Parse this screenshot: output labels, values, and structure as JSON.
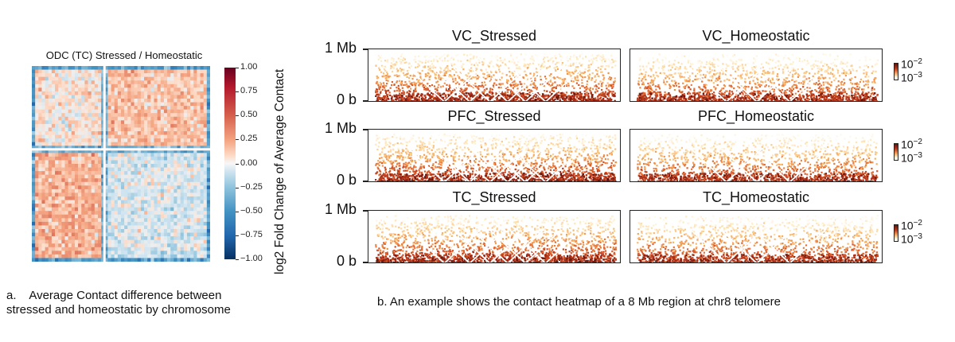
{
  "panel_a": {
    "title": "ODC (TC) Stressed / Homeostatic",
    "colorbar_label": "log2 Fold Change of Average Contact",
    "caption_line1": "a.    Average Contact difference between",
    "caption_line2": "stressed and homeostatic by chromosome"
  },
  "panel_b": {
    "caption": "b. An example shows the contact heatmap of a 8 Mb region at chr8 telomere",
    "y_top": "1 Mb",
    "y_bottom": "0 b",
    "cbar_top": "10",
    "cbar_top_exp": "−2",
    "cbar_bottom": "10",
    "cbar_bottom_exp": "−3"
  },
  "chart_data": [
    {
      "type": "heatmap",
      "title": "ODC (TC) Stressed / Homeostatic",
      "colorbar_label": "log2 Fold Change of Average Contact",
      "colorbar_range": [
        -1.0,
        1.0
      ],
      "colorbar_ticks": [
        "1.00",
        "0.75",
        "0.50",
        "0.25",
        "0.00",
        "−0.25",
        "−0.50",
        "−0.75",
        "−1.00"
      ],
      "colormap": "RdBu_r",
      "blocks": 2,
      "cells_per_side": 54
    },
    {
      "type": "heatmap",
      "subtype": "triangular contact maps",
      "region": "8 Mb region at chr8 telomere",
      "panels": [
        "VC_Stressed",
        "VC_Homeostatic",
        "PFC_Stressed",
        "PFC_Homeostatic",
        "TC_Stressed",
        "TC_Homeostatic"
      ],
      "y_range_label": [
        "0 b",
        "1 Mb"
      ],
      "colorbar_range": [
        "10^-3",
        "10^-2"
      ]
    }
  ]
}
